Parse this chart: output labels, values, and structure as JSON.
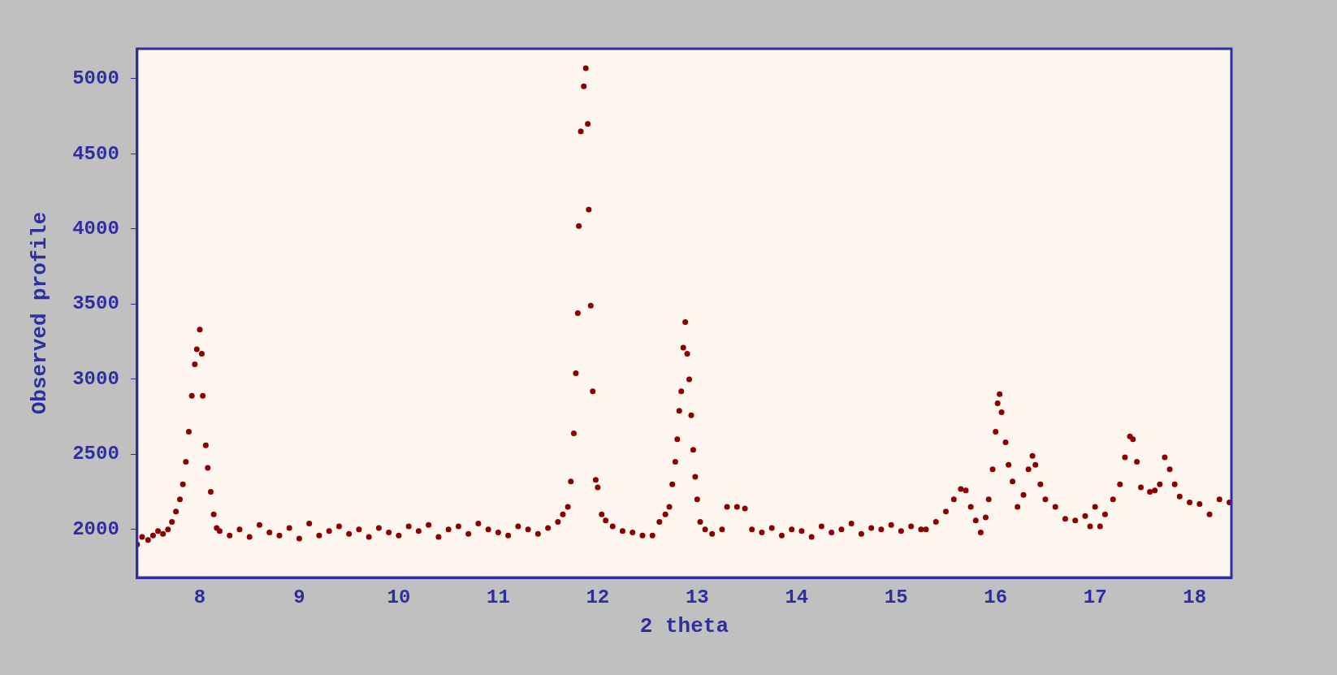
{
  "chart_data": {
    "type": "scatter",
    "xlabel": "2 theta",
    "ylabel": "Observed profile",
    "xlim": [
      7.37,
      18.37
    ],
    "ylim": [
      1680,
      5200
    ],
    "xticks": [
      8,
      9,
      10,
      11,
      12,
      13,
      14,
      15,
      16,
      17,
      18
    ],
    "yticks": [
      2000,
      2500,
      3000,
      3500,
      4000,
      4500,
      5000
    ],
    "grid": false,
    "legend": false,
    "marker": "circle",
    "series": [
      {
        "color": "#8b0000",
        "x": [
          7.37,
          7.42,
          7.48,
          7.53,
          7.58,
          7.63,
          7.68,
          7.72,
          7.76,
          7.8,
          7.83,
          7.86,
          7.89,
          7.92,
          7.95,
          7.97,
          8.0,
          8.02,
          8.03,
          8.06,
          8.08,
          8.11,
          8.14,
          8.17,
          8.2,
          8.3,
          8.4,
          8.5,
          8.6,
          8.7,
          8.8,
          8.9,
          9.0,
          9.1,
          9.2,
          9.3,
          9.4,
          9.5,
          9.6,
          9.7,
          9.8,
          9.9,
          10.0,
          10.1,
          10.2,
          10.3,
          10.4,
          10.5,
          10.6,
          10.7,
          10.8,
          10.9,
          11.0,
          11.1,
          11.2,
          11.3,
          11.4,
          11.5,
          11.6,
          11.65,
          11.7,
          11.73,
          11.76,
          11.78,
          11.8,
          11.81,
          11.83,
          11.86,
          11.88,
          11.9,
          11.91,
          11.93,
          11.95,
          11.98,
          12.0,
          12.04,
          12.08,
          12.15,
          12.25,
          12.35,
          12.45,
          12.55,
          12.62,
          12.68,
          12.72,
          12.75,
          12.78,
          12.8,
          12.82,
          12.84,
          12.86,
          12.88,
          12.9,
          12.92,
          12.94,
          12.96,
          12.98,
          13.0,
          13.03,
          13.08,
          13.15,
          13.25,
          13.3,
          13.4,
          13.48,
          13.55,
          13.65,
          13.75,
          13.85,
          13.95,
          14.05,
          14.15,
          14.25,
          14.35,
          14.45,
          14.55,
          14.65,
          14.75,
          14.85,
          14.95,
          15.05,
          15.15,
          15.25,
          15.3,
          15.4,
          15.5,
          15.58,
          15.65,
          15.7,
          15.75,
          15.8,
          15.85,
          15.9,
          15.93,
          15.97,
          16.0,
          16.02,
          16.04,
          16.06,
          16.1,
          16.13,
          16.17,
          16.22,
          16.28,
          16.33,
          16.37,
          16.4,
          16.45,
          16.5,
          16.6,
          16.7,
          16.8,
          16.9,
          16.95,
          17.0,
          17.05,
          17.1,
          17.18,
          17.25,
          17.3,
          17.35,
          17.38,
          17.42,
          17.46,
          17.55,
          17.6,
          17.65,
          17.7,
          17.75,
          17.8,
          17.85,
          17.95,
          18.05,
          18.15,
          18.25,
          18.35
        ],
        "values": [
          1900,
          1950,
          1930,
          1960,
          1990,
          1970,
          2000,
          2050,
          2120,
          2200,
          2300,
          2450,
          2650,
          2890,
          3100,
          3200,
          3330,
          3170,
          2890,
          2560,
          2410,
          2250,
          2100,
          2010,
          1990,
          1960,
          2000,
          1950,
          2030,
          1980,
          1960,
          2010,
          1940,
          2040,
          1960,
          1990,
          2020,
          1970,
          2000,
          1950,
          2010,
          1980,
          1960,
          2020,
          1990,
          2030,
          1950,
          2000,
          2020,
          1970,
          2040,
          2000,
          1980,
          1960,
          2020,
          2000,
          1970,
          2010,
          2050,
          2100,
          2150,
          2320,
          2640,
          3040,
          3440,
          4020,
          4650,
          4950,
          5070,
          4700,
          4130,
          3490,
          2920,
          2330,
          2280,
          2100,
          2060,
          2020,
          1990,
          1980,
          1960,
          1960,
          2050,
          2100,
          2150,
          2300,
          2450,
          2600,
          2790,
          2920,
          3210,
          3380,
          3170,
          3000,
          2760,
          2530,
          2350,
          2200,
          2050,
          2000,
          1970,
          2000,
          2150,
          2150,
          2140,
          2000,
          1980,
          2010,
          1960,
          2000,
          1990,
          1950,
          2020,
          1980,
          2000,
          2040,
          1970,
          2010,
          2000,
          2030,
          1990,
          2020,
          2000,
          2000,
          2050,
          2120,
          2200,
          2270,
          2260,
          2150,
          2060,
          1980,
          2080,
          2200,
          2400,
          2650,
          2840,
          2900,
          2780,
          2580,
          2430,
          2320,
          2150,
          2230,
          2400,
          2490,
          2430,
          2300,
          2200,
          2150,
          2070,
          2060,
          2090,
          2020,
          2150,
          2020,
          2100,
          2200,
          2300,
          2480,
          2620,
          2600,
          2450,
          2280,
          2250,
          2260,
          2300,
          2480,
          2400,
          2300,
          2220,
          2180,
          2170,
          2100,
          2200,
          2180
        ]
      }
    ]
  }
}
